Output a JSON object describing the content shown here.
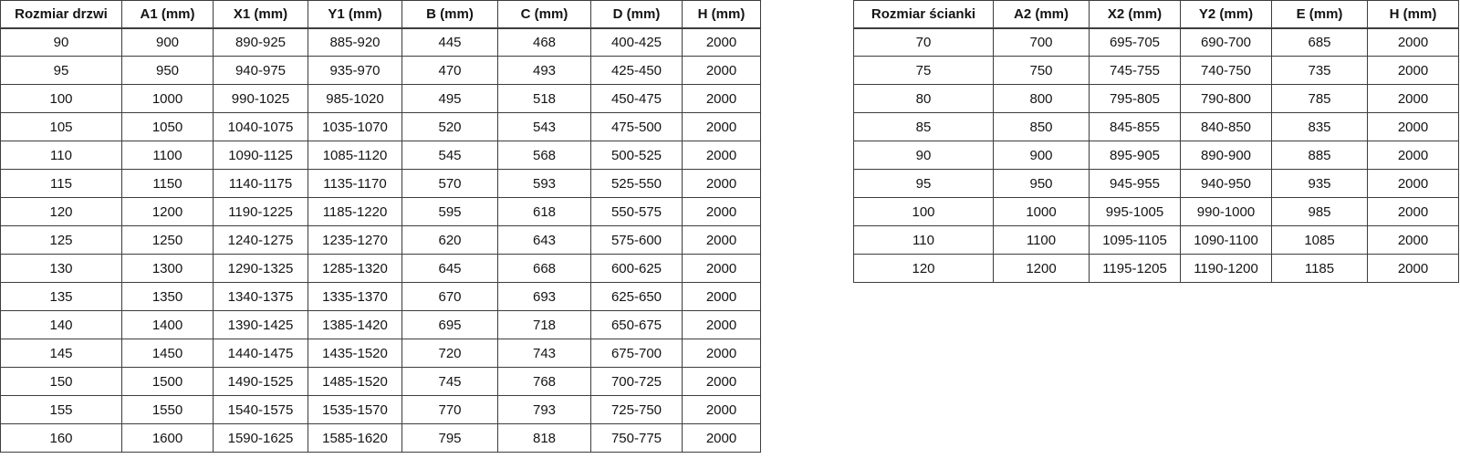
{
  "colors": {
    "border": "#3d3d3d",
    "text": "#141414",
    "background": "#ffffff"
  },
  "door_table": {
    "title": "Rozmiar drzwi",
    "headers": [
      "Rozmiar drzwi",
      "A1 (mm)",
      "X1 (mm)",
      "Y1 (mm)",
      "B (mm)",
      "C (mm)",
      "D (mm)",
      "H (mm)"
    ],
    "rows": [
      [
        "90",
        "900",
        "890-925",
        "885-920",
        "445",
        "468",
        "400-425",
        "2000"
      ],
      [
        "95",
        "950",
        "940-975",
        "935-970",
        "470",
        "493",
        "425-450",
        "2000"
      ],
      [
        "100",
        "1000",
        "990-1025",
        "985-1020",
        "495",
        "518",
        "450-475",
        "2000"
      ],
      [
        "105",
        "1050",
        "1040-1075",
        "1035-1070",
        "520",
        "543",
        "475-500",
        "2000"
      ],
      [
        "110",
        "1100",
        "1090-1125",
        "1085-1120",
        "545",
        "568",
        "500-525",
        "2000"
      ],
      [
        "115",
        "1150",
        "1140-1175",
        "1135-1170",
        "570",
        "593",
        "525-550",
        "2000"
      ],
      [
        "120",
        "1200",
        "1190-1225",
        "1185-1220",
        "595",
        "618",
        "550-575",
        "2000"
      ],
      [
        "125",
        "1250",
        "1240-1275",
        "1235-1270",
        "620",
        "643",
        "575-600",
        "2000"
      ],
      [
        "130",
        "1300",
        "1290-1325",
        "1285-1320",
        "645",
        "668",
        "600-625",
        "2000"
      ],
      [
        "135",
        "1350",
        "1340-1375",
        "1335-1370",
        "670",
        "693",
        "625-650",
        "2000"
      ],
      [
        "140",
        "1400",
        "1390-1425",
        "1385-1420",
        "695",
        "718",
        "650-675",
        "2000"
      ],
      [
        "145",
        "1450",
        "1440-1475",
        "1435-1520",
        "720",
        "743",
        "675-700",
        "2000"
      ],
      [
        "150",
        "1500",
        "1490-1525",
        "1485-1520",
        "745",
        "768",
        "700-725",
        "2000"
      ],
      [
        "155",
        "1550",
        "1540-1575",
        "1535-1570",
        "770",
        "793",
        "725-750",
        "2000"
      ],
      [
        "160",
        "1600",
        "1590-1625",
        "1585-1620",
        "795",
        "818",
        "750-775",
        "2000"
      ]
    ]
  },
  "wall_table": {
    "title": "Rozmiar ścianki",
    "headers": [
      "Rozmiar ścianki",
      "A2 (mm)",
      "X2 (mm)",
      "Y2 (mm)",
      "E (mm)",
      "H (mm)"
    ],
    "rows": [
      [
        "70",
        "700",
        "695-705",
        "690-700",
        "685",
        "2000"
      ],
      [
        "75",
        "750",
        "745-755",
        "740-750",
        "735",
        "2000"
      ],
      [
        "80",
        "800",
        "795-805",
        "790-800",
        "785",
        "2000"
      ],
      [
        "85",
        "850",
        "845-855",
        "840-850",
        "835",
        "2000"
      ],
      [
        "90",
        "900",
        "895-905",
        "890-900",
        "885",
        "2000"
      ],
      [
        "95",
        "950",
        "945-955",
        "940-950",
        "935",
        "2000"
      ],
      [
        "100",
        "1000",
        "995-1005",
        "990-1000",
        "985",
        "2000"
      ],
      [
        "110",
        "1100",
        "1095-1105",
        "1090-1100",
        "1085",
        "2000"
      ],
      [
        "120",
        "1200",
        "1195-1205",
        "1190-1200",
        "1185",
        "2000"
      ]
    ]
  }
}
